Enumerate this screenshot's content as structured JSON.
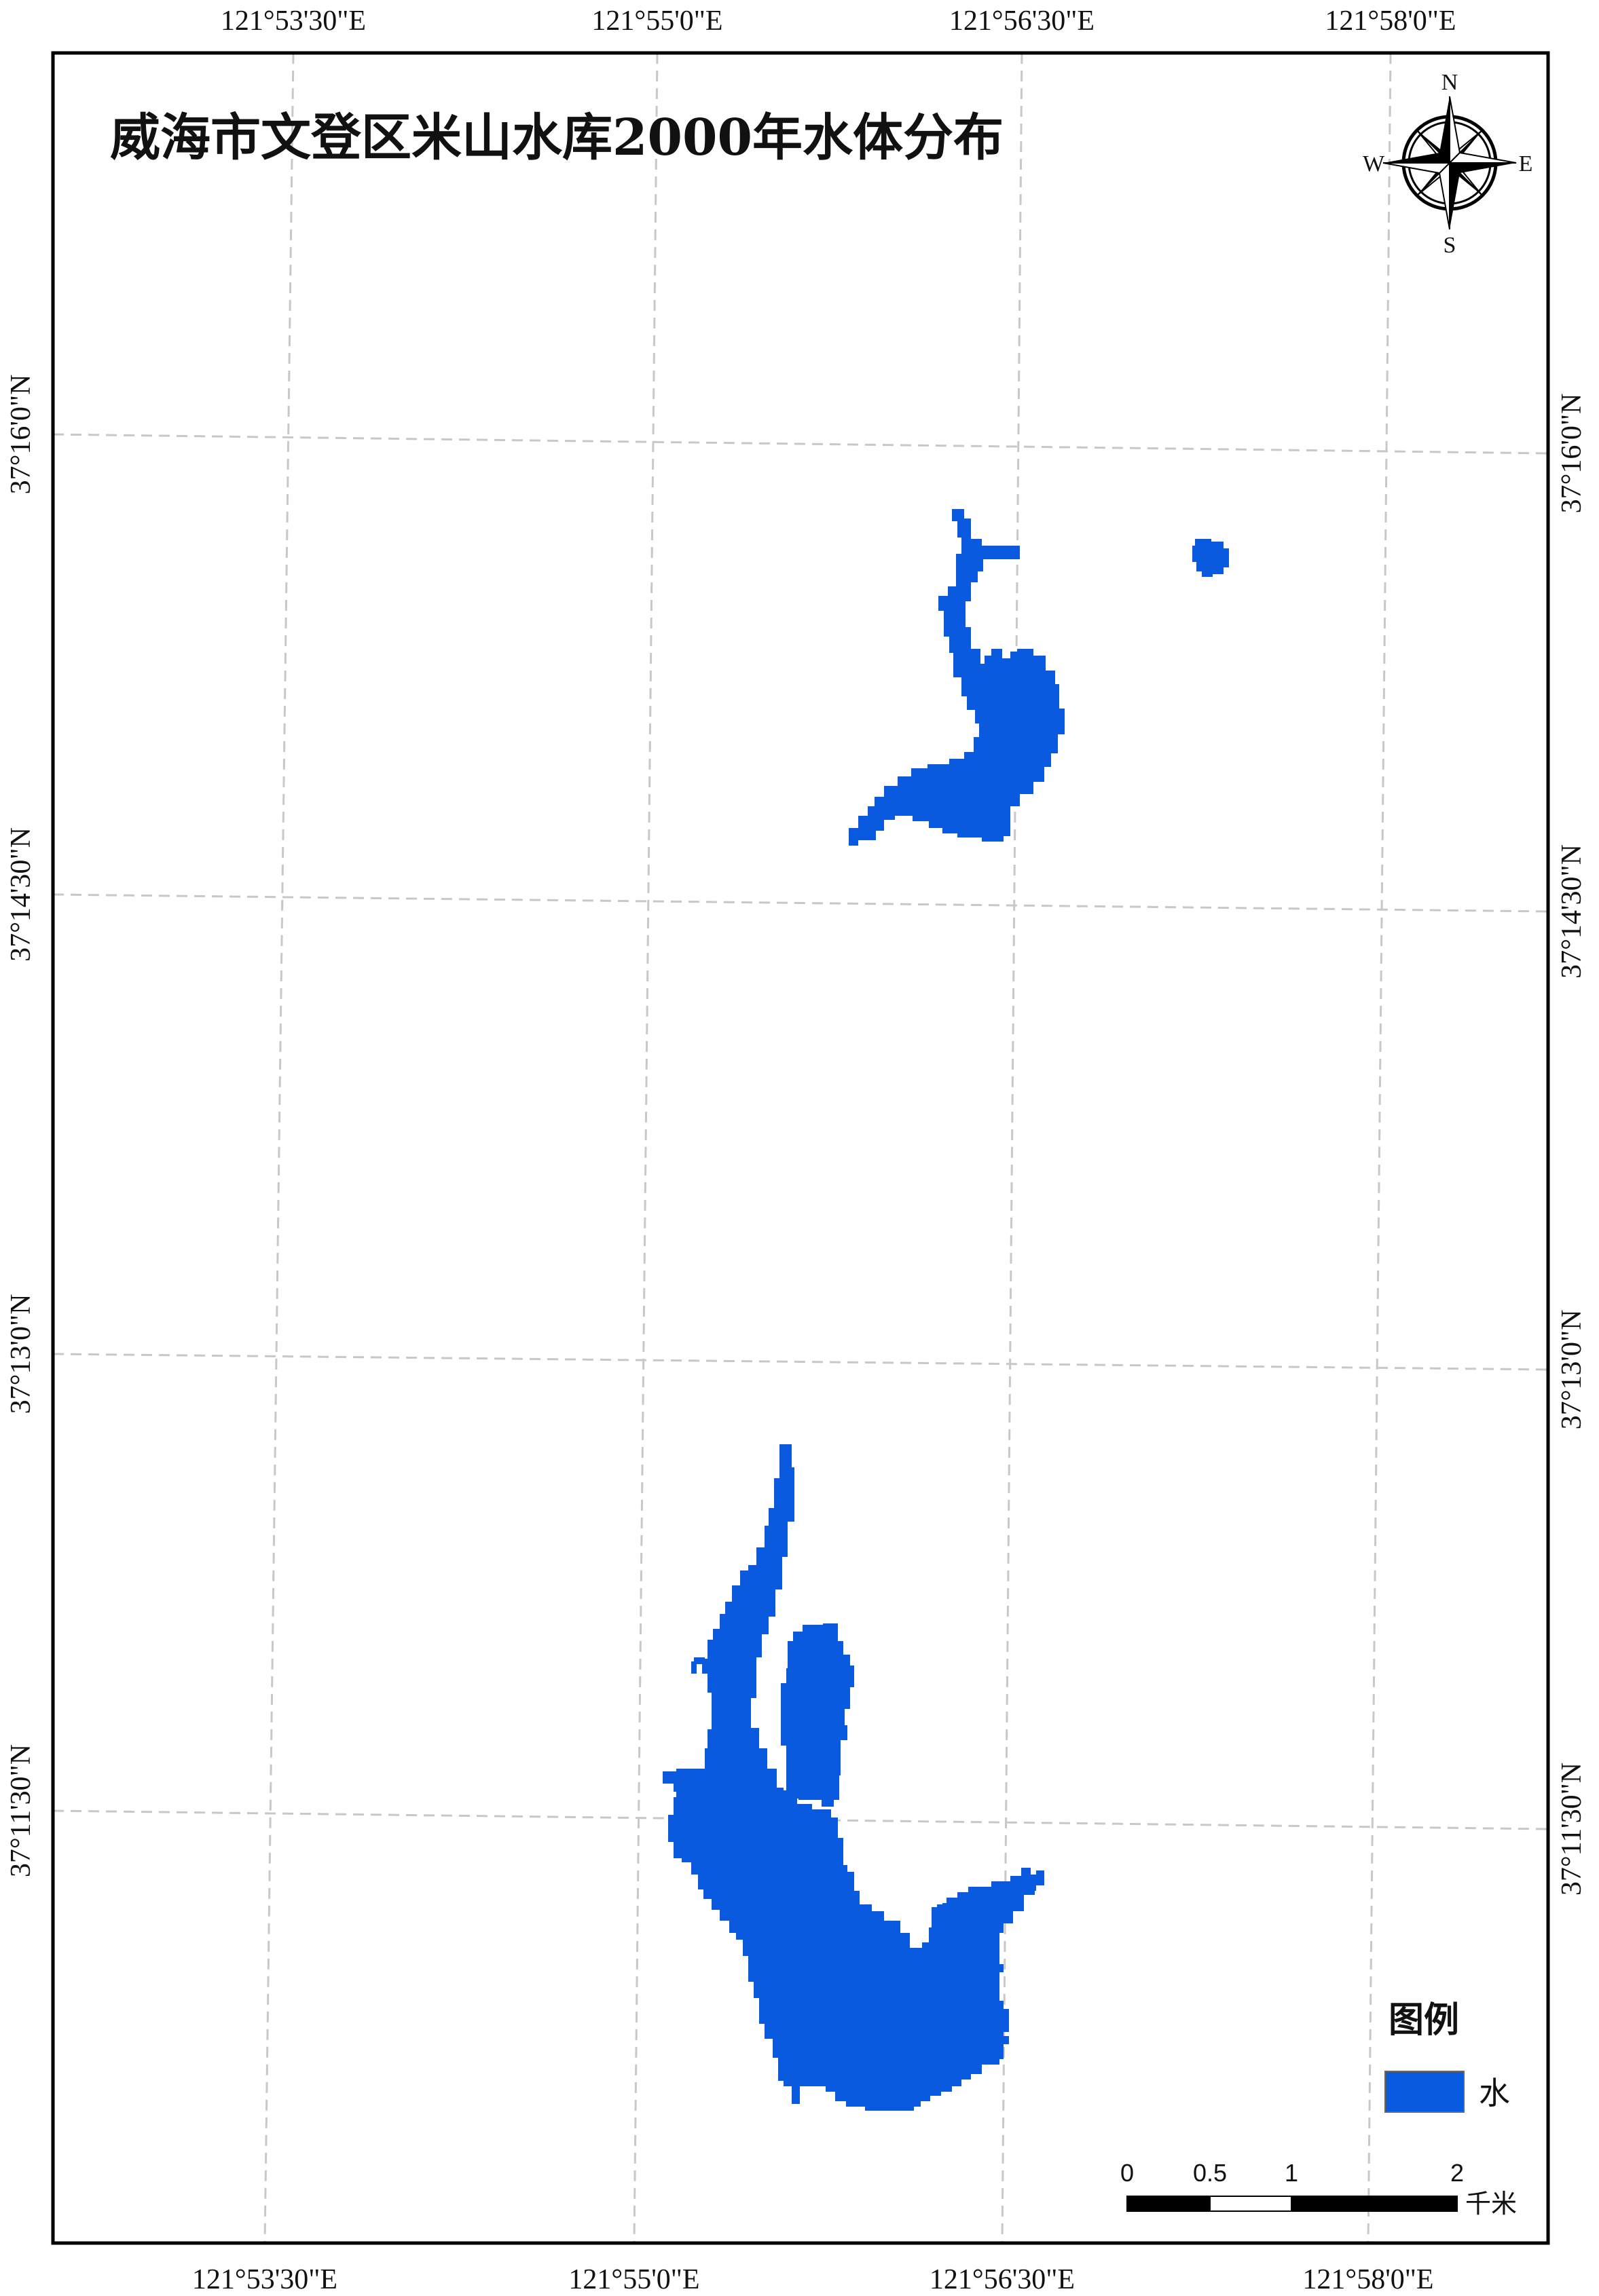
{
  "map": {
    "title": "威海市文登区米山水库2000年水体分布",
    "water_color": "#0a5ae0",
    "grid_color": "#c8c8c8",
    "longitude_labels": [
      "121°53'30\"E",
      "121°55'0\"E",
      "121°56'30\"E",
      "121°58'0\"E"
    ],
    "latitude_labels": [
      "37°16'0\"N",
      "37°14'30\"N",
      "37°13'0\"N",
      "37°11'30\"N"
    ]
  },
  "compass": {
    "north": "N",
    "south": "S",
    "east": "E",
    "west": "W"
  },
  "legend": {
    "title": "图例",
    "items": [
      {
        "label": "水",
        "color": "#0a5ae0"
      }
    ]
  },
  "scale_bar": {
    "ticks": [
      "0",
      "0.5",
      "1",
      "2"
    ],
    "unit": "千米"
  }
}
